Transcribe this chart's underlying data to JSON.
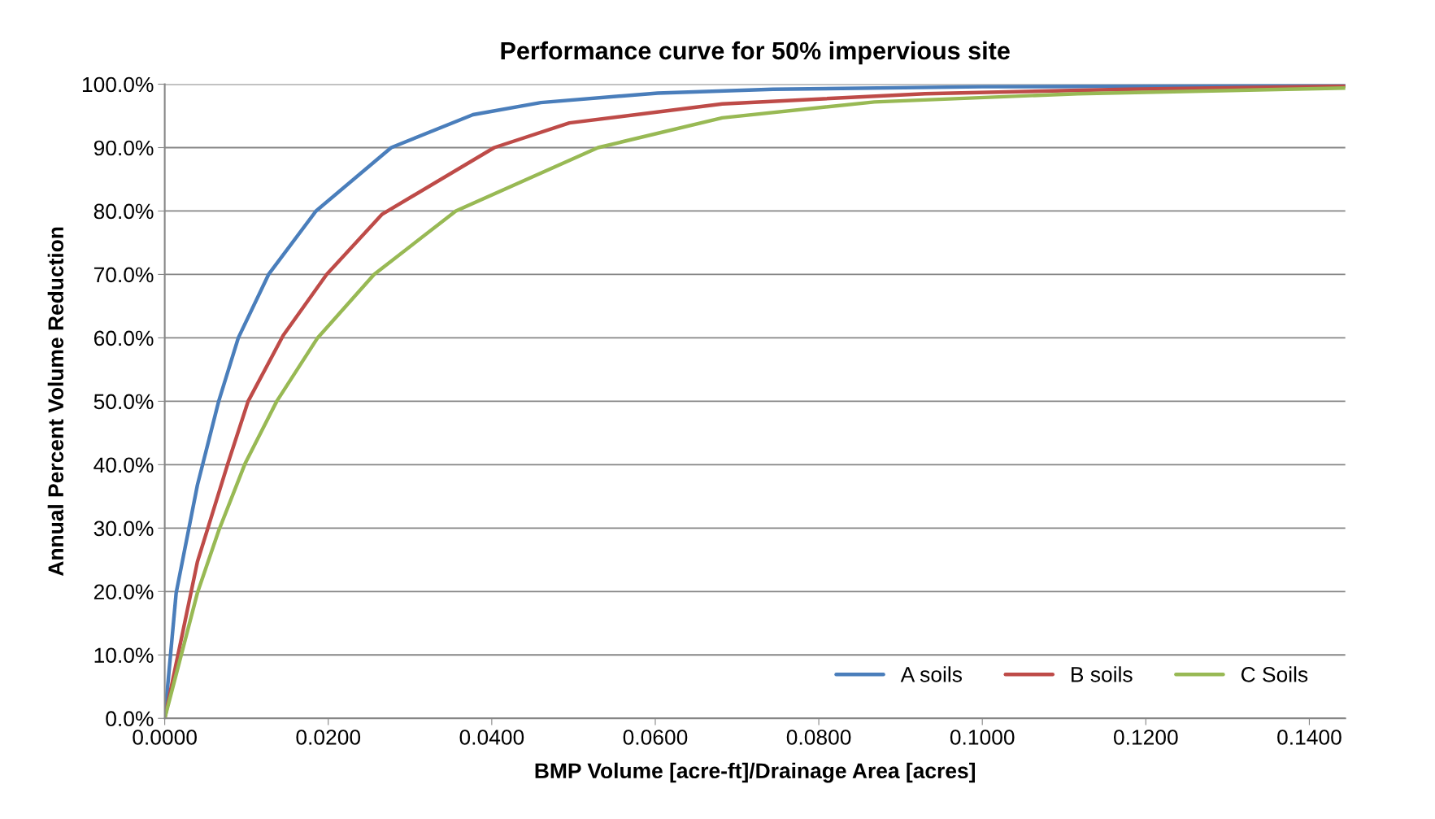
{
  "chart_data": {
    "type": "line",
    "title": "Performance curve for 50% impervious site",
    "xlabel": "BMP Volume [acre-ft]/Drainage Area [acres]",
    "ylabel": "Annual Percent Volume Reduction",
    "xlim": [
      0,
      0.1444
    ],
    "ylim": [
      0,
      1
    ],
    "xticks": [
      {
        "value": 0,
        "label": "0.0000"
      },
      {
        "value": 0.02,
        "label": "0.0200"
      },
      {
        "value": 0.04,
        "label": "0.0400"
      },
      {
        "value": 0.06,
        "label": "0.0600"
      },
      {
        "value": 0.08,
        "label": "0.0800"
      },
      {
        "value": 0.1,
        "label": "0.1000"
      },
      {
        "value": 0.12,
        "label": "0.1200"
      },
      {
        "value": 0.14,
        "label": "0.1400"
      }
    ],
    "yticks": [
      {
        "value": 0,
        "label": "0.0%"
      },
      {
        "value": 0.1,
        "label": "10.0%"
      },
      {
        "value": 0.2,
        "label": "20.0%"
      },
      {
        "value": 0.3,
        "label": "30.0%"
      },
      {
        "value": 0.4,
        "label": "40.0%"
      },
      {
        "value": 0.5,
        "label": "50.0%"
      },
      {
        "value": 0.6,
        "label": "60.0%"
      },
      {
        "value": 0.7,
        "label": "70.0%"
      },
      {
        "value": 0.8,
        "label": "80.0%"
      },
      {
        "value": 0.9,
        "label": "90.0%"
      },
      {
        "value": 1,
        "label": "100.0%"
      }
    ],
    "grid": "y",
    "legend": "bottom right",
    "marker": "none",
    "line_style": "solid",
    "series": [
      {
        "name": "A soils",
        "color": "#4a7ebb",
        "x": [
          0,
          0.0014,
          0.004,
          0.0066,
          0.009,
          0.0127,
          0.0185,
          0.0277,
          0.0377,
          0.046,
          0.0603,
          0.0744,
          0.1,
          0.1444
        ],
        "values": [
          0,
          0.198,
          0.368,
          0.5,
          0.6,
          0.7,
          0.8,
          0.9,
          0.952,
          0.971,
          0.986,
          0.992,
          0.996,
          0.998
        ]
      },
      {
        "name": "B soils",
        "color": "#be4b48",
        "x": [
          0,
          0.004,
          0.0077,
          0.0102,
          0.0145,
          0.0198,
          0.0266,
          0.0403,
          0.0495,
          0.0682,
          0.093,
          0.1179,
          0.1444
        ],
        "values": [
          0,
          0.247,
          0.401,
          0.5,
          0.604,
          0.7,
          0.795,
          0.9,
          0.939,
          0.969,
          0.985,
          0.992,
          0.997
        ]
      },
      {
        "name": "C Soils",
        "color": "#98b954",
        "x": [
          0,
          0.004,
          0.0066,
          0.0098,
          0.0137,
          0.0187,
          0.0256,
          0.0356,
          0.053,
          0.0682,
          0.0868,
          0.1117,
          0.1444
        ],
        "values": [
          0,
          0.198,
          0.296,
          0.401,
          0.5,
          0.6,
          0.7,
          0.8,
          0.9,
          0.947,
          0.972,
          0.985,
          0.994
        ]
      }
    ]
  }
}
